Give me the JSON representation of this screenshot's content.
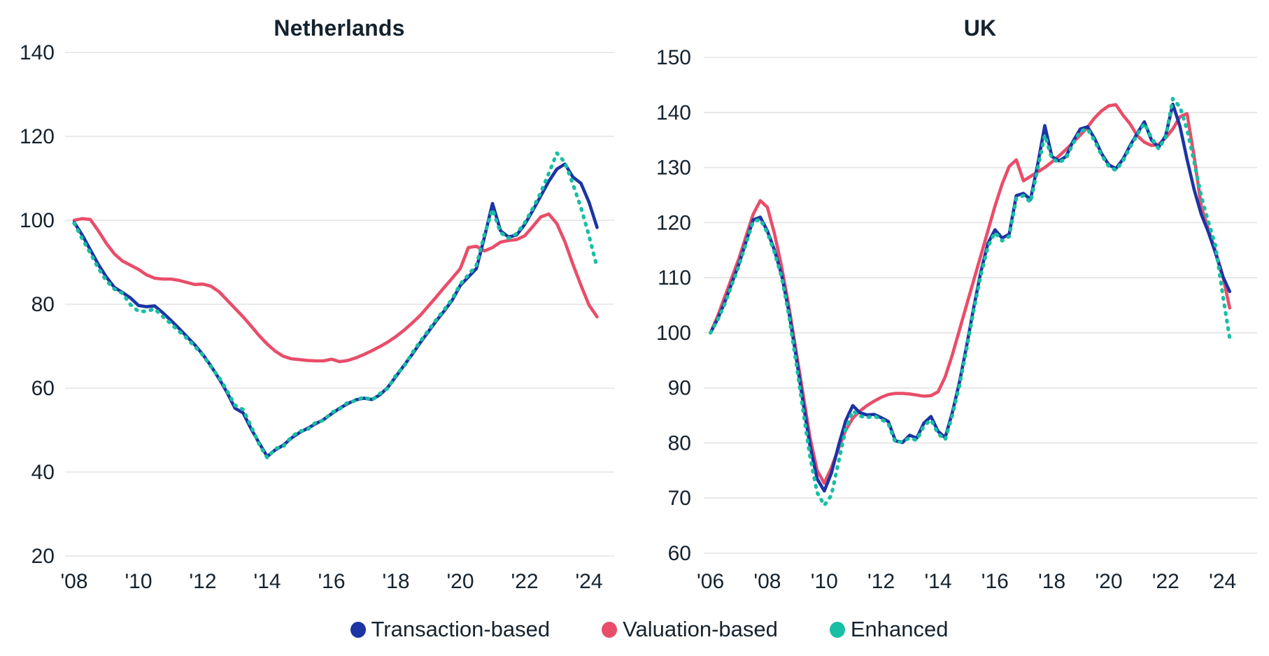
{
  "figure": {
    "background": "#ffffff",
    "text_color": "#15232f",
    "grid_color": "#e3e3e3"
  },
  "legend": {
    "items": [
      {
        "label": "Transaction-based",
        "color": "#1c34a4",
        "series_key": "transaction",
        "marker": "dot"
      },
      {
        "label": "Valuation-based",
        "color": "#e94d69",
        "series_key": "valuation",
        "marker": "dot"
      },
      {
        "label": "Enhanced",
        "color": "#18bfa4",
        "series_key": "enhanced",
        "marker": "dot"
      }
    ]
  },
  "chart_data": [
    {
      "type": "line",
      "title": "Netherlands",
      "x_start": 2008.0,
      "x_step": 0.25,
      "x_tick_labels": [
        "'08",
        "'10",
        "'12",
        "'14",
        "'16",
        "'18",
        "'20",
        "'22",
        "'24"
      ],
      "x_tick_values": [
        2008,
        2010,
        2012,
        2014,
        2016,
        2018,
        2020,
        2022,
        2024
      ],
      "ylim": [
        20,
        140
      ],
      "y_ticks": [
        140,
        120,
        100,
        80,
        60,
        40,
        20
      ],
      "grid": "horizontal",
      "legend_position": "bottom",
      "series": [
        {
          "name": "Transaction-based",
          "key": "transaction",
          "style": "solid",
          "color": "#1c34a4",
          "values": [
            99.5,
            96.5,
            93.0,
            89.5,
            86.5,
            84.0,
            82.8,
            81.5,
            79.7,
            79.4,
            79.6,
            78.0,
            76.2,
            74.3,
            72.3,
            70.3,
            68.0,
            65.3,
            62.3,
            59.0,
            55.2,
            54.1,
            50.3,
            46.9,
            43.7,
            45.3,
            46.4,
            48.1,
            49.4,
            50.4,
            51.5,
            52.5,
            53.9,
            55.2,
            56.3,
            57.2,
            57.6,
            57.3,
            58.4,
            60.2,
            62.8,
            65.4,
            68.0,
            70.8,
            73.4,
            76.0,
            78.4,
            81.0,
            84.5,
            86.5,
            88.5,
            96.0,
            104.0,
            97.5,
            96.0,
            96.5,
            99.0,
            102.3,
            105.8,
            109.3,
            112.2,
            113.4,
            110.3,
            108.8,
            104.3,
            98.3
          ]
        },
        {
          "name": "Valuation-based",
          "key": "valuation",
          "style": "solid",
          "color": "#e94d69",
          "values": [
            100.0,
            100.4,
            100.2,
            97.5,
            94.5,
            92.0,
            90.3,
            89.3,
            88.3,
            87.0,
            86.2,
            86.0,
            86.0,
            85.7,
            85.2,
            84.7,
            84.8,
            84.3,
            83.0,
            81.0,
            79.0,
            77.0,
            74.8,
            72.5,
            70.5,
            68.8,
            67.6,
            67.0,
            66.8,
            66.6,
            66.5,
            66.5,
            66.9,
            66.3,
            66.6,
            67.2,
            68.0,
            68.9,
            69.9,
            71.0,
            72.3,
            73.8,
            75.5,
            77.3,
            79.5,
            81.7,
            84.0,
            86.2,
            88.5,
            93.5,
            93.8,
            92.7,
            93.5,
            94.8,
            95.2,
            95.4,
            96.3,
            98.5,
            100.8,
            101.5,
            99.2,
            94.9,
            89.5,
            84.5,
            79.8,
            77.0
          ]
        },
        {
          "name": "Enhanced",
          "key": "enhanced",
          "style": "dotted",
          "color": "#18bfa4",
          "values": [
            99.3,
            95.6,
            92.2,
            88.6,
            85.6,
            83.6,
            82.6,
            79.9,
            78.3,
            78.3,
            78.9,
            77.1,
            75.4,
            73.6,
            71.9,
            69.9,
            67.9,
            65.1,
            62.6,
            59.4,
            55.9,
            54.9,
            50.9,
            46.6,
            43.4,
            45.6,
            46.1,
            48.4,
            49.7,
            50.1,
            51.8,
            52.3,
            54.2,
            55.0,
            56.6,
            57.0,
            57.9,
            57.1,
            58.7,
            60.0,
            63.1,
            65.2,
            68.3,
            71.1,
            73.7,
            76.3,
            78.7,
            81.3,
            84.8,
            87.0,
            89.3,
            96.6,
            102.6,
            97.1,
            95.7,
            96.8,
            99.4,
            102.8,
            106.6,
            111.2,
            116.0,
            113.8,
            108.6,
            103.0,
            96.3,
            88.8
          ]
        }
      ]
    },
    {
      "type": "line",
      "title": "UK",
      "x_start": 2006.0,
      "x_step": 0.25,
      "x_tick_labels": [
        "'06",
        "'08",
        "'10",
        "'12",
        "'14",
        "'16",
        "'18",
        "'20",
        "'22",
        "'24"
      ],
      "x_tick_values": [
        2006,
        2008,
        2010,
        2012,
        2014,
        2016,
        2018,
        2020,
        2022,
        2024
      ],
      "ylim": [
        60,
        150
      ],
      "y_ticks": [
        150,
        140,
        130,
        120,
        110,
        100,
        90,
        80,
        70,
        60
      ],
      "grid": "horizontal",
      "legend_position": "bottom",
      "series": [
        {
          "name": "Transaction-based",
          "key": "transaction",
          "style": "solid",
          "color": "#1c34a4",
          "values": [
            100.0,
            102.5,
            105.5,
            109.0,
            112.5,
            116.5,
            120.5,
            121.0,
            118.5,
            115.0,
            110.5,
            104.0,
            96.0,
            87.5,
            79.5,
            73.5,
            71.3,
            74.5,
            79.5,
            84.0,
            86.8,
            85.5,
            85.1,
            85.2,
            84.6,
            83.9,
            80.4,
            80.1,
            81.4,
            80.9,
            83.6,
            84.8,
            82.1,
            81.0,
            85.5,
            91.0,
            97.5,
            104.5,
            111.0,
            116.2,
            118.7,
            117.2,
            117.9,
            124.9,
            125.3,
            124.2,
            130.5,
            137.6,
            132.0,
            131.2,
            132.0,
            134.8,
            137.0,
            137.4,
            135.3,
            132.5,
            130.5,
            129.8,
            131.5,
            134.0,
            136.2,
            138.3,
            135.0,
            133.7,
            135.8,
            141.5,
            137.5,
            131.5,
            126.0,
            121.5,
            118.3,
            114.5,
            110.3,
            107.5
          ]
        },
        {
          "name": "Valuation-based",
          "key": "valuation",
          "style": "solid",
          "color": "#e94d69",
          "values": [
            100.0,
            103.0,
            106.5,
            110.0,
            113.5,
            117.5,
            121.5,
            124.0,
            122.8,
            118.0,
            112.0,
            105.0,
            97.0,
            89.0,
            81.0,
            75.0,
            72.7,
            75.5,
            79.0,
            82.3,
            84.5,
            85.8,
            86.8,
            87.6,
            88.3,
            88.8,
            89.0,
            89.0,
            88.9,
            88.7,
            88.5,
            88.6,
            89.3,
            92.0,
            96.0,
            100.5,
            105.0,
            109.5,
            114.0,
            118.5,
            123.0,
            127.0,
            130.2,
            131.4,
            127.6,
            128.4,
            129.2,
            130.0,
            131.0,
            132.1,
            133.3,
            134.6,
            135.9,
            137.3,
            139.0,
            140.3,
            141.2,
            141.4,
            139.5,
            137.9,
            135.8,
            134.6,
            134.0,
            134.2,
            135.4,
            137.0,
            139.2,
            139.8,
            132.0,
            122.9,
            118.8,
            114.8,
            110.5,
            104.5
          ]
        },
        {
          "name": "Enhanced",
          "key": "enhanced",
          "style": "dotted",
          "color": "#18bfa4",
          "values": [
            100.0,
            102.3,
            105.2,
            108.7,
            112.2,
            116.2,
            120.2,
            120.6,
            118.2,
            114.6,
            110.1,
            103.4,
            95.0,
            86.0,
            77.5,
            71.0,
            68.7,
            70.5,
            76.5,
            82.5,
            85.8,
            84.9,
            84.6,
            84.9,
            84.3,
            83.5,
            80.1,
            80.3,
            80.9,
            80.5,
            83.1,
            84.2,
            81.7,
            80.6,
            85.0,
            90.4,
            97.0,
            104.0,
            110.4,
            115.6,
            118.2,
            116.7,
            117.5,
            124.4,
            124.9,
            123.7,
            129.8,
            135.9,
            131.6,
            130.9,
            131.7,
            134.4,
            136.6,
            137.0,
            134.9,
            132.2,
            130.2,
            129.5,
            131.2,
            133.7,
            136.0,
            138.0,
            135.4,
            133.4,
            135.5,
            142.5,
            141.0,
            136.9,
            131.0,
            124.8,
            120.2,
            115.8,
            107.0,
            99.0
          ]
        }
      ]
    }
  ]
}
